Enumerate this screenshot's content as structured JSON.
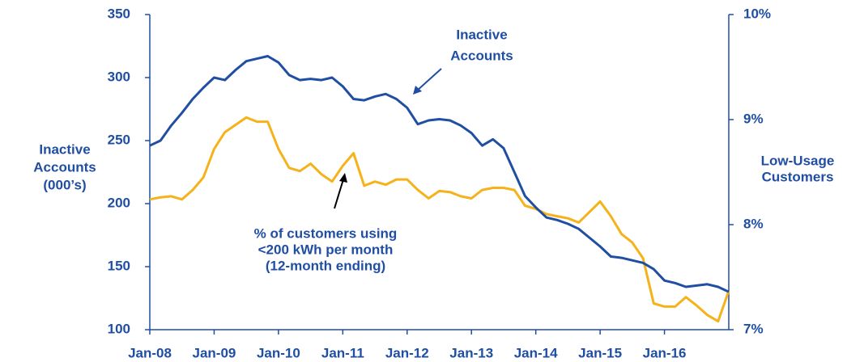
{
  "chart_data": {
    "type": "line",
    "categories": [
      "Jan-08",
      null,
      null,
      null,
      null,
      null,
      "Jan-09",
      null,
      null,
      null,
      null,
      null,
      "Jan-10",
      null,
      null,
      null,
      null,
      null,
      "Jan-11",
      null,
      null,
      null,
      null,
      null,
      "Jan-12",
      null,
      null,
      null,
      null,
      null,
      "Jan-13",
      null,
      null,
      null,
      null,
      null,
      "Jan-14",
      null,
      null,
      null,
      null,
      null,
      "Jan-15",
      null,
      null,
      null,
      null,
      null,
      "Jan-16",
      null,
      null,
      null,
      null,
      null,
      null
    ],
    "series": [
      {
        "name": "Inactive Accounts",
        "color": "#1f4ea3",
        "axis": "y",
        "values": [
          246,
          250,
          262,
          272,
          283,
          292,
          300,
          298,
          306,
          313,
          315,
          317,
          312,
          302,
          298,
          299,
          298,
          300,
          293,
          283,
          282,
          285,
          287,
          283,
          276,
          263,
          266,
          267,
          266,
          262,
          256,
          246,
          251,
          244,
          225,
          206,
          197,
          189,
          187,
          184,
          180,
          173,
          166,
          158,
          157,
          155,
          153,
          148,
          139,
          137,
          134,
          135,
          136,
          134,
          130
        ]
      },
      {
        "name": "% of customers using <200 kWh per month (12-month ending)",
        "color": "#f5b21b",
        "axis": "y2",
        "values": [
          8.24,
          8.26,
          8.27,
          8.24,
          8.33,
          8.45,
          8.72,
          8.88,
          8.95,
          9.02,
          8.98,
          8.98,
          8.72,
          8.54,
          8.51,
          8.58,
          8.48,
          8.41,
          8.56,
          8.68,
          8.37,
          8.41,
          8.38,
          8.43,
          8.43,
          8.33,
          8.25,
          8.32,
          8.31,
          8.27,
          8.25,
          8.33,
          8.35,
          8.35,
          8.33,
          8.18,
          8.15,
          8.1,
          8.08,
          8.06,
          8.02,
          8.12,
          8.22,
          8.08,
          7.91,
          7.83,
          7.68,
          7.25,
          7.22,
          7.22,
          7.31,
          7.23,
          7.14,
          7.08,
          7.37
        ]
      }
    ],
    "y_label": [
      "Inactive",
      "Accounts",
      "(000’s)"
    ],
    "y2_label": [
      "Low-Usage",
      "Customers"
    ],
    "annotations": [
      [
        "Inactive",
        "Accounts"
      ],
      [
        "% of customers using",
        "<200 kWh per month",
        "(12-month ending)"
      ]
    ],
    "ylim": [
      100,
      350
    ],
    "yticks": [
      100,
      150,
      200,
      250,
      300,
      350
    ],
    "y2lim": [
      7,
      10
    ],
    "y2ticks": [
      {
        "value": 7,
        "label": "7%"
      },
      {
        "value": 8,
        "label": "8%"
      },
      {
        "value": 9,
        "label": "9%"
      },
      {
        "value": 10,
        "label": "10%"
      }
    ]
  }
}
